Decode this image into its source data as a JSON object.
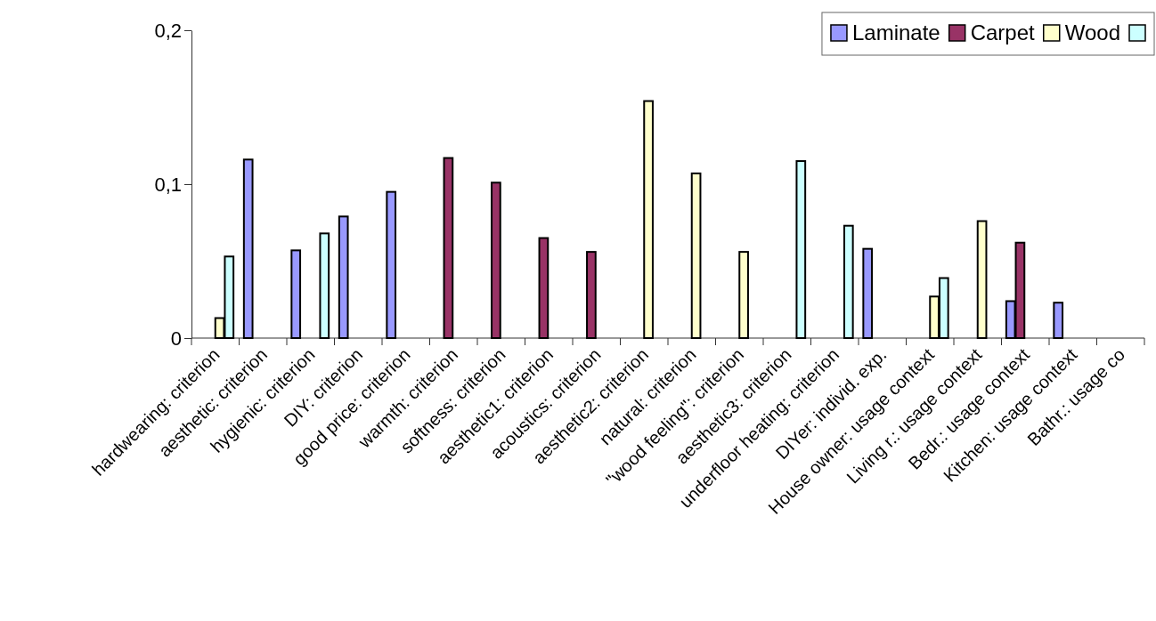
{
  "chart_data": {
    "type": "bar",
    "categories": [
      "hardwearing:  criterion",
      "aesthetic: criterion",
      "hygienic: criterion",
      "DIY: criterion",
      "good price: criterion",
      "warmth: criterion",
      "softness: criterion",
      "aesthetic1: criterion",
      "acoustics: criterion",
      "aesthetic2: criterion",
      "natural: criterion",
      "\"wood feeling\": criterion",
      "aesthetic3: criterion",
      "underfloor heating: criterion",
      "DIYer: individ. exp.",
      "House owner: usage context",
      "Living r.: usage context",
      "Bedr.: usage context",
      "Kitchen: usage context",
      "Bathr.: usage co"
    ],
    "series": [
      {
        "name": "Laminate",
        "color": "#9999ff",
        "values": [
          null,
          0.116,
          0.057,
          0.079,
          0.095,
          null,
          null,
          null,
          null,
          null,
          null,
          null,
          null,
          null,
          0.058,
          null,
          null,
          0.024,
          0.023,
          null
        ]
      },
      {
        "name": "Carpet",
        "color": "#993366",
        "values": [
          null,
          null,
          null,
          null,
          null,
          0.117,
          0.101,
          0.065,
          0.056,
          null,
          null,
          null,
          null,
          null,
          null,
          null,
          null,
          0.062,
          null,
          null
        ]
      },
      {
        "name": "Wood",
        "color": "#ffffcc",
        "values": [
          0.013,
          null,
          null,
          null,
          null,
          null,
          null,
          null,
          null,
          0.154,
          0.107,
          0.056,
          null,
          null,
          null,
          0.027,
          0.076,
          null,
          null,
          null
        ]
      },
      {
        "color": "#ccffff",
        "values": [
          0.053,
          null,
          0.068,
          null,
          null,
          null,
          null,
          null,
          null,
          null,
          null,
          null,
          0.115,
          0.073,
          null,
          0.039,
          null,
          null,
          null,
          null
        ]
      }
    ],
    "ylim": [
      0,
      0.2
    ],
    "yticks": [
      0,
      {
        "value": 0.1,
        "label": "0,1"
      },
      {
        "value": 0.2,
        "label": "0,2"
      }
    ],
    "grid": false,
    "legend": "top right"
  }
}
